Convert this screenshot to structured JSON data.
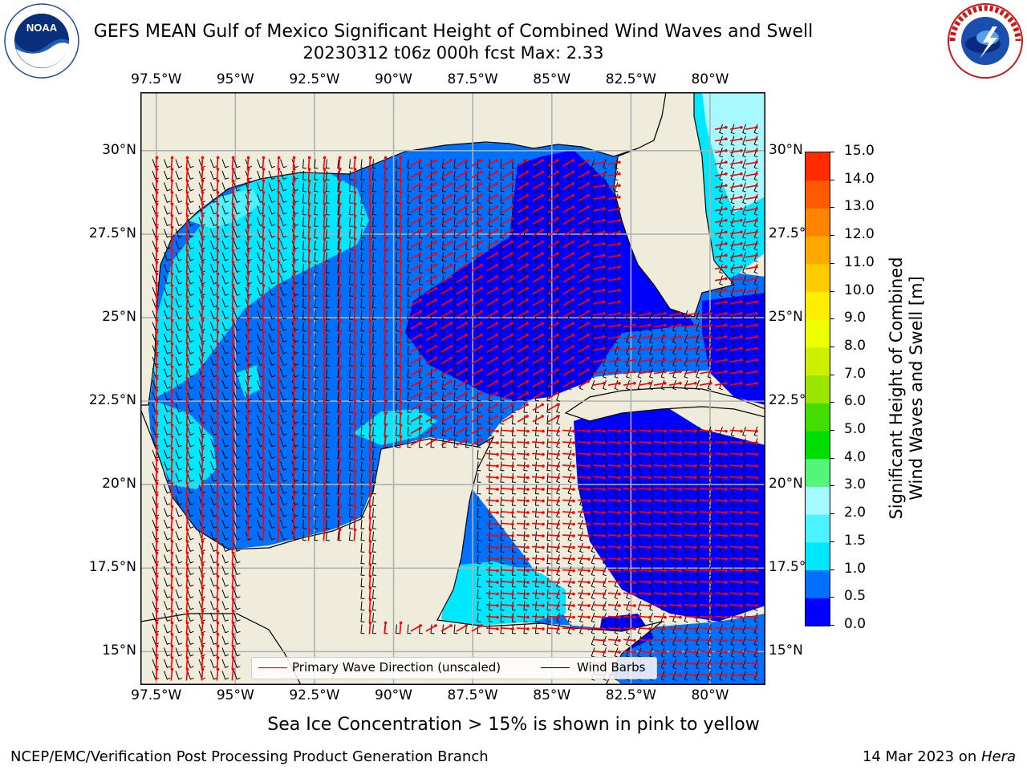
{
  "header": {
    "title_line1": "GEFS MEAN Gulf of Mexico Significant Height of Combined Wind Waves and Swell",
    "title_line2": "20230312 t06z 000h fcst   Max: 2.33"
  },
  "logos": {
    "left": {
      "icon": "noaa-logo",
      "text": "NOAA",
      "ring_text": "NATIONAL OCEANIC AND ATMOSPHERIC ADMINISTRATION · U.S. DEPARTMENT OF COMMERCE"
    },
    "right": {
      "icon": "nws-logo",
      "ring_text": "NATIONAL WEATHER SERVICE"
    }
  },
  "map": {
    "lon_labels": [
      "97.5°W",
      "95°W",
      "92.5°W",
      "90°W",
      "87.5°W",
      "85°W",
      "82.5°W",
      "80°W"
    ],
    "lon_values": [
      -97.5,
      -95,
      -92.5,
      -90,
      -87.5,
      -85,
      -82.5,
      -80
    ],
    "lat_labels": [
      "30°N",
      "27.5°N",
      "25°N",
      "22.5°N",
      "20°N",
      "17.5°N",
      "15°N"
    ],
    "lat_values": [
      30,
      27.5,
      25,
      22.5,
      20,
      17.5,
      15
    ],
    "lon_range": [
      -98,
      -78.25
    ],
    "lat_range": [
      14,
      31.75
    ],
    "gridlines": true,
    "land_color": "#efecdc",
    "grid_color": "#b0b0b0"
  },
  "legend": {
    "items": [
      {
        "label": "Primary Wave Direction (unscaled)",
        "color": "#ff0000"
      },
      {
        "label": "Wind Barbs",
        "color": "#000000"
      }
    ]
  },
  "colorbar": {
    "label_line1": "Significant Height of Combined",
    "label_line2": "Wind Waves and Swell [m]",
    "ticks": [
      "0.0",
      "0.5",
      "1.0",
      "1.5",
      "2.0",
      "3.0",
      "4.0",
      "5.0",
      "6.0",
      "7.0",
      "8.0",
      "9.0",
      "10.0",
      "11.0",
      "12.0",
      "13.0",
      "14.0",
      "15.0"
    ],
    "colors": [
      "#0000ff",
      "#0070ff",
      "#00e8ff",
      "#4cf2ff",
      "#a6faff",
      "#55f57a",
      "#00dd00",
      "#44dd00",
      "#9ae600",
      "#ccf000",
      "#eeff00",
      "#ffee00",
      "#ffcc00",
      "#ffa800",
      "#ff8400",
      "#ff5a00",
      "#ff2a00"
    ]
  },
  "notes": {
    "ice": "Sea Ice Concentration > 15% is shown in pink to yellow"
  },
  "footer": {
    "left": "NCEP/EMC/Verification Post Processing Product Generation Branch",
    "right_prefix": "14 Mar 2023 on ",
    "right_host": "Hera"
  }
}
